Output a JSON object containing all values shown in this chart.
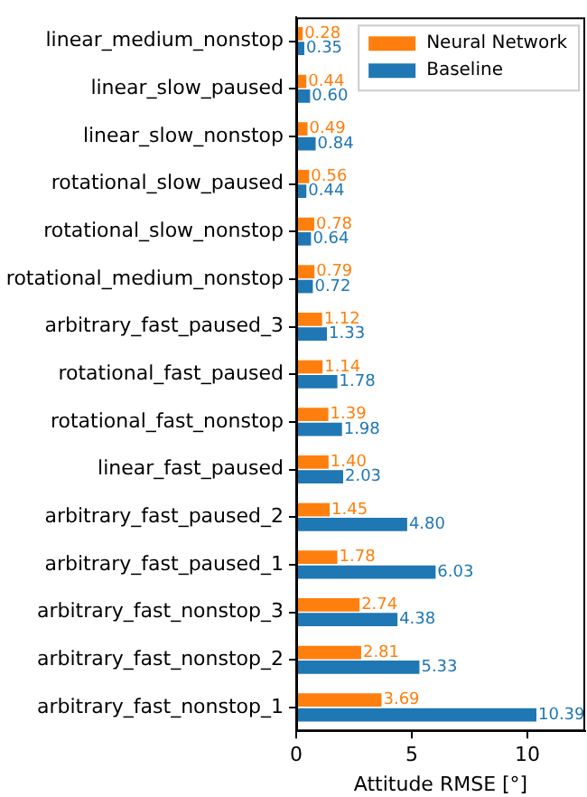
{
  "chart_data": {
    "type": "bar",
    "orientation": "horizontal",
    "xlabel": "Attitude RMSE [°]",
    "categories": [
      "linear_medium_nonstop",
      "linear_slow_paused",
      "linear_slow_nonstop",
      "rotational_slow_paused",
      "rotational_slow_nonstop",
      "rotational_medium_nonstop",
      "arbitrary_fast_paused_3",
      "rotational_fast_paused",
      "rotational_fast_nonstop",
      "linear_fast_paused",
      "arbitrary_fast_paused_2",
      "arbitrary_fast_paused_1",
      "arbitrary_fast_nonstop_3",
      "arbitrary_fast_nonstop_2",
      "arbitrary_fast_nonstop_1"
    ],
    "series": [
      {
        "name": "Neural Network",
        "color": "#ff7f0e",
        "values": [
          0.28,
          0.44,
          0.49,
          0.56,
          0.78,
          0.79,
          1.12,
          1.14,
          1.39,
          1.4,
          1.45,
          1.78,
          2.74,
          2.81,
          3.69
        ],
        "value_labels": [
          "0.28",
          "0.44",
          "0.49",
          "0.56",
          "0.78",
          "0.79",
          "1.12",
          "1.14",
          "1.39",
          "1.40",
          "1.45",
          "1.78",
          "2.74",
          "2.81",
          "3.69"
        ]
      },
      {
        "name": "Baseline",
        "color": "#1f77b4",
        "values": [
          0.35,
          0.6,
          0.84,
          0.44,
          0.64,
          0.72,
          1.33,
          1.78,
          1.98,
          2.03,
          4.8,
          6.03,
          4.38,
          5.33,
          10.39
        ],
        "value_labels": [
          "0.35",
          "0.60",
          "0.84",
          "0.44",
          "0.64",
          "0.72",
          "1.33",
          "1.78",
          "1.98",
          "2.03",
          "4.80",
          "6.03",
          "4.38",
          "5.33",
          "10.39"
        ]
      }
    ],
    "xlim": [
      0,
      12.5
    ],
    "xticks": [
      0,
      5,
      10
    ],
    "grid": false,
    "legend": "top right"
  }
}
